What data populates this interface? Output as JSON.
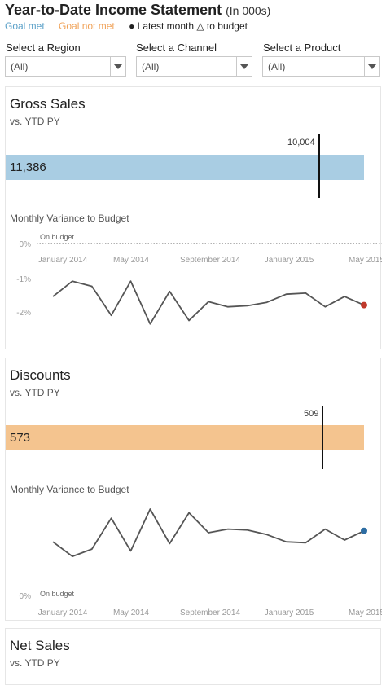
{
  "header": {
    "title": "Year-to-Date Income Statement",
    "subtitle": "(In 000s)"
  },
  "legend": {
    "goal_met": "Goal met",
    "goal_not_met": "Goal not met",
    "latest": "● Latest month △ to budget"
  },
  "filters": [
    {
      "label": "Select a Region",
      "value": "(All)"
    },
    {
      "label": "Select a Channel",
      "value": "(All)"
    },
    {
      "label": "Select a Product",
      "value": "(All)"
    }
  ],
  "colors": {
    "goal_met": "#a9cde3",
    "goal_not_met": "#f4c48f",
    "line": "#555555",
    "latest_red": "#c0392b",
    "latest_blue": "#2d6da3"
  },
  "panels": [
    {
      "title": "Gross Sales",
      "subtitle": "vs. YTD PY",
      "value_label": "11,386",
      "value": 11386,
      "reference": 10004,
      "reference_label": "10,004",
      "status": "goal_met",
      "variance_title": "Monthly Variance to Budget",
      "on_budget_label": "On budget",
      "chart_data": {
        "type": "line",
        "y_ticks": [
          "0%",
          "-1%",
          "-2%"
        ],
        "x_ticks": [
          "January 2014",
          "May 2014",
          "September 2014",
          "January 2015",
          "May 2015"
        ],
        "values": [
          -1.55,
          -1.1,
          -1.25,
          -2.1,
          -1.1,
          -2.35,
          -1.4,
          -2.25,
          -1.7,
          -1.85,
          -1.82,
          -1.72,
          -1.48,
          -1.45,
          -1.85,
          -1.55,
          -1.8
        ],
        "latest_color": "red"
      }
    },
    {
      "title": "Discounts",
      "subtitle": "vs. YTD PY",
      "value_label": "573",
      "value": 573,
      "reference": 509,
      "reference_label": "509",
      "status": "goal_not_met",
      "variance_title": "Monthly Variance to Budget",
      "on_budget_label": "On budget",
      "chart_data": {
        "type": "line",
        "y_ticks": [
          "0%"
        ],
        "x_ticks": [
          "January 2014",
          "May 2014",
          "September 2014",
          "January 2015",
          "May 2015"
        ],
        "values": [
          2.9,
          2.1,
          2.5,
          4.2,
          2.4,
          4.7,
          2.8,
          4.5,
          3.4,
          3.6,
          3.55,
          3.3,
          2.9,
          2.85,
          3.6,
          3.0,
          3.5
        ],
        "latest_color": "blue"
      }
    },
    {
      "title": "Net Sales",
      "subtitle": "vs. YTD PY"
    }
  ]
}
